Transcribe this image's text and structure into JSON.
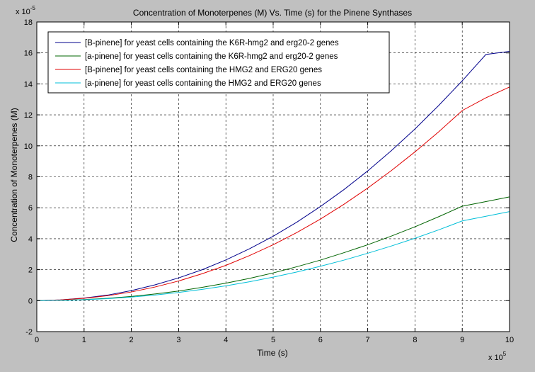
{
  "chart_data": {
    "type": "line",
    "title": "Concentration of Monoterpenes (M) Vs. Time (s) for the Pinene Synthases",
    "xlabel": "Time (s)",
    "ylabel": "Concentration of Monoterpenes (M)",
    "x_multiplier_label": "x 10",
    "x_multiplier_exponent": "5",
    "y_multiplier_label": "x 10",
    "y_multiplier_exponent": "-5",
    "xlim": [
      0,
      10
    ],
    "ylim": [
      -2,
      18
    ],
    "xticks": [
      0,
      1,
      2,
      3,
      4,
      5,
      6,
      7,
      8,
      9,
      10
    ],
    "yticks": [
      -2,
      0,
      2,
      4,
      6,
      8,
      10,
      12,
      14,
      16,
      18
    ],
    "grid": true,
    "legend_position": "top-left",
    "x": [
      0,
      0.5,
      1,
      1.5,
      2,
      2.5,
      3,
      3.5,
      4,
      4.5,
      5,
      5.5,
      6,
      6.5,
      7,
      7.5,
      8,
      8.5,
      9,
      9.5,
      10
    ],
    "series": [
      {
        "name": "[B-pinene] for yeast cells containing the K6R-hmg2 and erg20-2 genes",
        "color": "#00008b",
        "values": [
          0,
          0.05,
          0.17,
          0.36,
          0.65,
          1.02,
          1.47,
          2.0,
          2.63,
          3.35,
          4.16,
          5.07,
          6.08,
          7.18,
          8.38,
          9.69,
          11.09,
          12.6,
          14.2,
          15.9,
          16.1
        ]
      },
      {
        "name": "[a-pinene] for yeast cells containing the K6R-hmg2 and erg20-2 genes",
        "color": "#006400",
        "values": [
          0,
          0.02,
          0.07,
          0.15,
          0.27,
          0.43,
          0.62,
          0.86,
          1.13,
          1.44,
          1.79,
          2.19,
          2.62,
          3.1,
          3.61,
          4.17,
          4.77,
          5.42,
          6.1,
          6.4,
          6.7
        ]
      },
      {
        "name": "[B-pinene] for yeast cells containing the HMG2 and ERG20 genes",
        "color": "#e00000",
        "values": [
          0,
          0.05,
          0.15,
          0.32,
          0.56,
          0.88,
          1.27,
          1.74,
          2.28,
          2.91,
          3.61,
          4.4,
          5.27,
          6.23,
          7.27,
          8.4,
          9.61,
          10.9,
          12.28,
          13.1,
          13.8
        ]
      },
      {
        "name": "[a-pinene] for yeast cells containing the HMG2 and ERG20 genes",
        "color": "#00bfd8",
        "values": [
          0,
          0.02,
          0.06,
          0.13,
          0.23,
          0.36,
          0.53,
          0.73,
          0.96,
          1.22,
          1.52,
          1.85,
          2.22,
          2.62,
          3.06,
          3.53,
          4.03,
          4.57,
          5.15,
          5.45,
          5.75
        ]
      }
    ]
  }
}
